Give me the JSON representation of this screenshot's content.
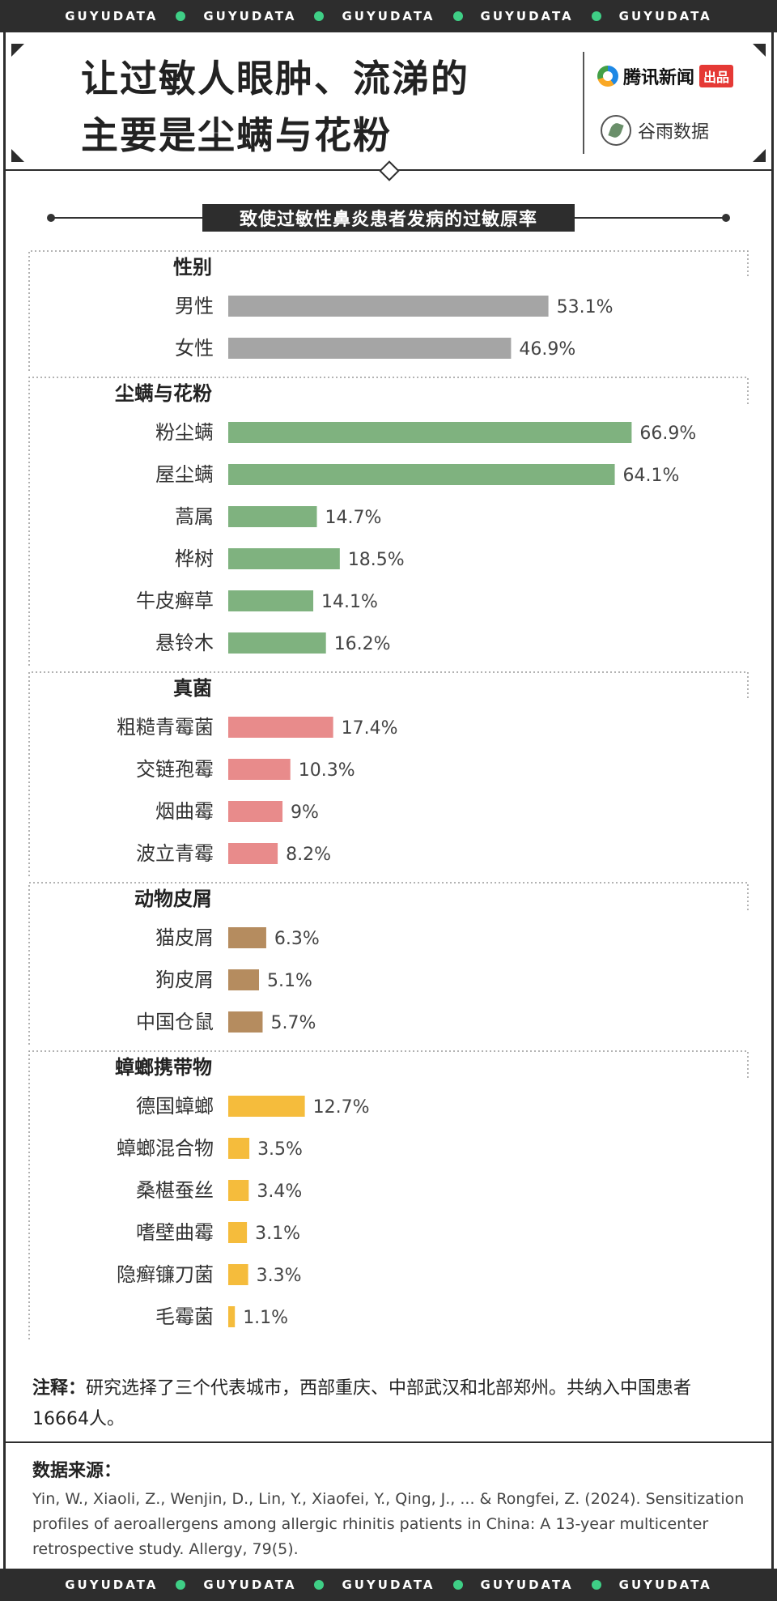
{
  "band": {
    "word": "GUYUDATA",
    "count": 5
  },
  "header": {
    "title_line1": "让过敏人眼肿、流涕的",
    "title_line2": "主要是尘螨与花粉",
    "brand1_name": "腾讯新闻",
    "brand1_tag": "出品",
    "brand2_name": "谷雨数据"
  },
  "colors": {
    "gender": "#a5a5a5",
    "pollen": "#7fb27f",
    "fungi": "#e88b8b",
    "animal": "#b58c5f",
    "cockroach": "#f5bc3c"
  },
  "chart_data": {
    "type": "bar",
    "orientation": "horizontal",
    "title": "致使过敏性鼻炎患者发病的过敏原率",
    "unit": "%",
    "groups": [
      {
        "name": "性别",
        "color_key": "gender",
        "items": [
          {
            "label": "男性",
            "value": 53.1
          },
          {
            "label": "女性",
            "value": 46.9
          }
        ]
      },
      {
        "name": "尘螨与花粉",
        "color_key": "pollen",
        "items": [
          {
            "label": "粉尘螨",
            "value": 66.9
          },
          {
            "label": "屋尘螨",
            "value": 64.1
          },
          {
            "label": "蒿属",
            "value": 14.7
          },
          {
            "label": "桦树",
            "value": 18.5
          },
          {
            "label": "牛皮癣草",
            "value": 14.1
          },
          {
            "label": "悬铃木",
            "value": 16.2
          }
        ]
      },
      {
        "name": "真菌",
        "color_key": "fungi",
        "items": [
          {
            "label": "粗糙青霉菌",
            "value": 17.4
          },
          {
            "label": "交链孢霉",
            "value": 10.3
          },
          {
            "label": "烟曲霉",
            "value": 9
          },
          {
            "label": "波立青霉",
            "value": 8.2
          }
        ]
      },
      {
        "name": "动物皮屑",
        "color_key": "animal",
        "items": [
          {
            "label": "猫皮屑",
            "value": 6.3
          },
          {
            "label": "狗皮屑",
            "value": 5.1
          },
          {
            "label": "中国仓鼠",
            "value": 5.7
          }
        ]
      },
      {
        "name": "蟑螂携带物",
        "color_key": "cockroach",
        "items": [
          {
            "label": "德国蟑螂",
            "value": 12.7
          },
          {
            "label": "蟑螂混合物",
            "value": 3.5
          },
          {
            "label": "桑椹蚕丝",
            "value": 3.4
          },
          {
            "label": "嗜壁曲霉",
            "value": 3.1
          },
          {
            "label": "隐癣镰刀菌",
            "value": 3.3
          },
          {
            "label": "毛霉菌",
            "value": 1.1
          }
        ]
      }
    ]
  },
  "note": {
    "label": "注释：",
    "text": "研究选择了三个代表城市，西部重庆、中部武汉和北部郑州。共纳入中国患者16664人。"
  },
  "source": {
    "label": "数据来源：",
    "text": "Yin, W., Xiaoli, Z., Wenjin, D., Lin, Y., Xiaofei, Y., Qing, J., ... & Rongfei, Z. (2024). Sensitization profiles of aeroallergens among allergic rhinitis patients in China: A 13‐year multicenter retrospective study. Allergy, 79(5)."
  }
}
